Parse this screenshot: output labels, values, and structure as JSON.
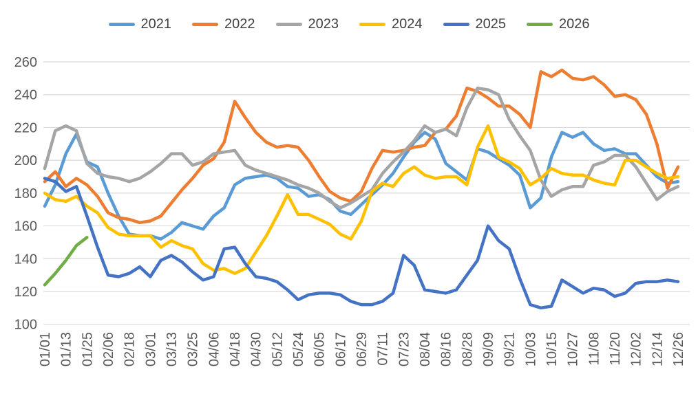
{
  "chart_data": {
    "type": "line",
    "title": "",
    "legend": {
      "position": "top",
      "entries": [
        "2021",
        "2022",
        "2023",
        "2024",
        "2025",
        "2026"
      ]
    },
    "x_axis": {
      "tick_interval_days": 12,
      "label_rotation_deg": -90,
      "tick_labels": [
        "01/01",
        "01/13",
        "01/25",
        "02/06",
        "02/18",
        "03/01",
        "03/13",
        "03/25",
        "04/06",
        "04/18",
        "04/30",
        "05/12",
        "05/24",
        "06/05",
        "06/17",
        "06/29",
        "07/11",
        "07/23",
        "08/04",
        "08/16",
        "08/28",
        "09/09",
        "09/21",
        "10/03",
        "10/15",
        "10/27",
        "11/08",
        "11/20",
        "12/02",
        "12/14",
        "12/26"
      ]
    },
    "y_axis": {
      "min": 100,
      "max": 260,
      "step": 20,
      "ticks": [
        260,
        240,
        220,
        200,
        180,
        160,
        140,
        120,
        100
      ]
    },
    "grid": true,
    "sample_interval_days": 6,
    "series": [
      {
        "name": "2021",
        "color": "#5B9BD5",
        "values": [
          172,
          185,
          204,
          216,
          199,
          196,
          180,
          166,
          155,
          154,
          154,
          152,
          156,
          162,
          160,
          158,
          166,
          171,
          185,
          189,
          190,
          191,
          189,
          184,
          183,
          178,
          179,
          176,
          169,
          167,
          173,
          179,
          185,
          192,
          202,
          211,
          217,
          213,
          198,
          193,
          188,
          207,
          205,
          201,
          197,
          191,
          171,
          177,
          202,
          217,
          214,
          217,
          210,
          206,
          207,
          204,
          204,
          197,
          190,
          186,
          187
        ]
      },
      {
        "name": "2022",
        "color": "#ED7D31",
        "values": [
          187,
          193,
          184,
          189,
          185,
          178,
          168,
          165,
          164,
          162,
          163,
          166,
          174,
          182,
          189,
          197,
          201,
          211,
          236,
          226,
          217,
          211,
          208,
          209,
          208,
          200,
          190,
          181,
          177,
          175,
          181,
          195,
          206,
          205,
          206,
          208,
          209,
          217,
          219,
          227,
          244,
          242,
          238,
          233,
          233,
          228,
          220,
          254,
          251,
          255,
          250,
          249,
          251,
          246,
          239,
          240,
          237,
          228,
          210,
          183,
          196
        ]
      },
      {
        "name": "2023",
        "color": "#A5A5A5",
        "values": [
          195,
          218,
          221,
          218,
          198,
          192,
          190,
          189,
          187,
          189,
          193,
          198,
          204,
          204,
          197,
          199,
          204,
          205,
          206,
          197,
          194,
          192,
          190,
          188,
          185,
          183,
          180,
          175,
          171,
          174,
          178,
          182,
          192,
          199,
          205,
          212,
          221,
          217,
          219,
          215,
          232,
          244,
          243,
          240,
          225,
          215,
          206,
          188,
          178,
          182,
          184,
          184,
          197,
          199,
          203,
          203,
          196,
          186,
          176,
          181,
          184
        ]
      },
      {
        "name": "2024",
        "color": "#FFC000",
        "values": [
          180,
          176,
          175,
          178,
          172,
          168,
          159,
          155,
          154,
          154,
          154,
          147,
          151,
          148,
          146,
          137,
          133,
          134,
          131,
          134,
          144,
          154,
          166,
          179,
          167,
          167,
          164,
          161,
          155,
          152,
          163,
          181,
          186,
          184,
          192,
          196,
          191,
          189,
          190,
          190,
          185,
          208,
          221,
          202,
          199,
          195,
          185,
          189,
          195,
          192,
          191,
          191,
          188,
          186,
          185,
          200,
          200,
          196,
          192,
          189,
          190
        ]
      },
      {
        "name": "2025",
        "color": "#4472C4",
        "values": [
          189,
          187,
          181,
          184,
          166,
          147,
          130,
          129,
          131,
          135,
          129,
          139,
          142,
          138,
          132,
          127,
          129,
          146,
          147,
          137,
          129,
          128,
          126,
          121,
          115,
          118,
          119,
          119,
          118,
          114,
          112,
          112,
          114,
          119,
          142,
          136,
          121,
          120,
          119,
          121,
          130,
          139,
          160,
          151,
          146,
          128,
          112,
          110,
          111,
          127,
          123,
          119,
          122,
          121,
          117,
          119,
          125,
          126,
          126,
          127,
          126
        ]
      },
      {
        "name": "2026",
        "color": "#70AD47",
        "values": [
          124,
          131,
          139,
          148,
          153
        ]
      }
    ],
    "styles": {
      "background": "#FFFFFF",
      "grid_color": "#D9D9D9",
      "tick_color": "#595959",
      "legend_text_color": "#404040",
      "line_width": 4.5
    }
  }
}
